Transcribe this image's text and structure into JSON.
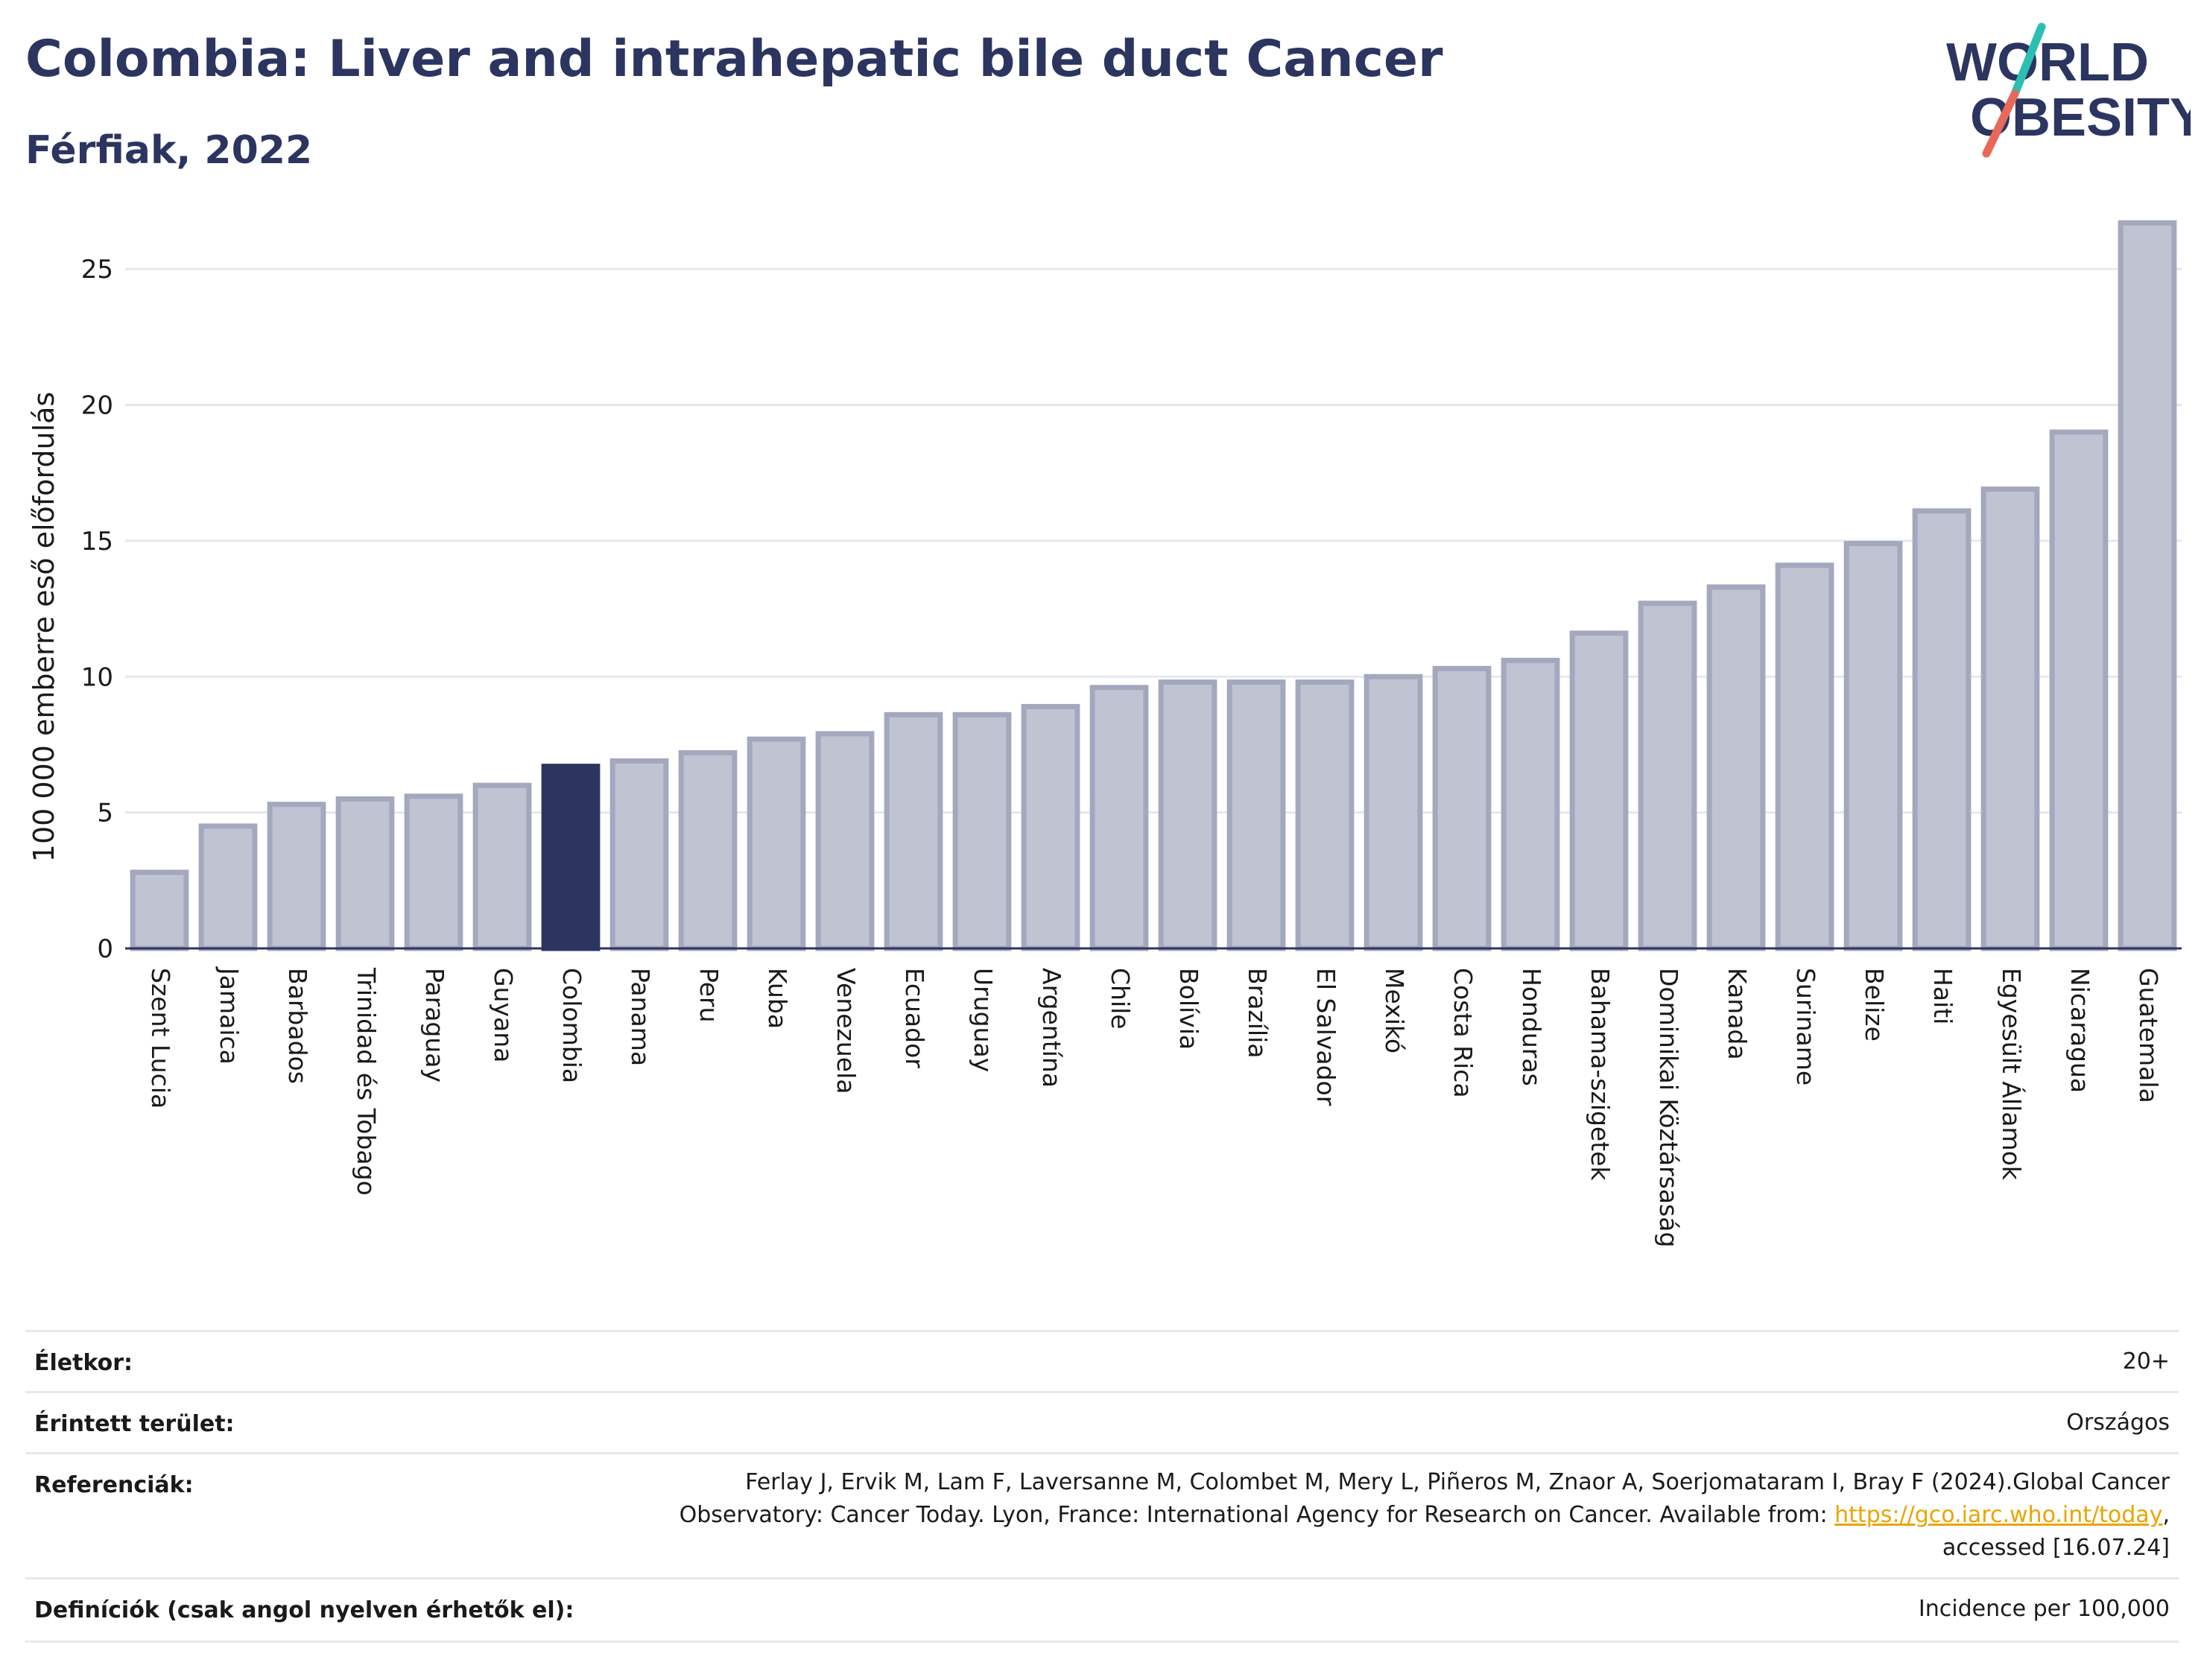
{
  "header": {
    "title": "Colombia: Liver and intrahepatic bile duct Cancer",
    "subtitle": "Férfiak, 2022"
  },
  "logo": {
    "line1": "WORLD",
    "line2": "OBESITY",
    "text_color": "#2b3560",
    "slash_top_color": "#2bbfb3",
    "slash_bottom_color": "#e8685a"
  },
  "colors": {
    "bar_fill": "#c0c3d1",
    "bar_stroke": "#a3a8be",
    "highlight_fill": "#2b3560",
    "grid": "#e6e8ef"
  },
  "chart_data": {
    "type": "bar",
    "ylabel": "100 000 emberre eső előfordulás",
    "ylim": [
      0,
      27.5
    ],
    "yticks": [
      0,
      5,
      10,
      15,
      20,
      25
    ],
    "highlight": "Colombia",
    "grid": true,
    "categories": [
      "Szent Lucia",
      "Jamaica",
      "Barbados",
      "Trinidad és Tobago",
      "Paraguay",
      "Guyana",
      "Colombia",
      "Panama",
      "Peru",
      "Kuba",
      "Venezuela",
      "Ecuador",
      "Uruguay",
      "Argentína",
      "Chile",
      "Bolívia",
      "Brazília",
      "El Salvador",
      "Mexikó",
      "Costa Rica",
      "Honduras",
      "Bahama-szigetek",
      "Dominikai Köztársaság",
      "Kanada",
      "Suriname",
      "Belize",
      "Haiti",
      "Egyesült Államok",
      "Nicaragua",
      "Guatemala"
    ],
    "values": [
      2.8,
      4.5,
      5.3,
      5.5,
      5.6,
      6.0,
      6.7,
      6.9,
      7.2,
      7.7,
      7.9,
      8.6,
      8.6,
      8.9,
      9.6,
      9.8,
      9.8,
      9.8,
      10.0,
      10.3,
      10.6,
      11.6,
      12.7,
      13.3,
      14.1,
      14.9,
      16.1,
      16.9,
      19.0,
      26.7
    ]
  },
  "meta": {
    "age_label": "Életkor:",
    "age_value": "20+",
    "area_label": "Érintett terület:",
    "area_value": "Országos",
    "ref_label": "Referenciák:",
    "ref_line1": "Ferlay J, Ervik M, Lam F, Laversanne M, Colombet M, Mery L, Piñeros M, Znaor A, Soerjomataram I, Bray F (2024).Global Cancer",
    "ref_line2_pre": "Observatory: Cancer Today. Lyon, France: International Agency for Research on Cancer. Available from: ",
    "ref_link": "https://gco.iarc.who.int/today",
    "ref_line2_post": ",",
    "ref_line3": "accessed [16.07.24]",
    "def_label": "Definíciók (csak angol nyelven érhetők el):",
    "def_value": "Incidence per 100,000"
  }
}
